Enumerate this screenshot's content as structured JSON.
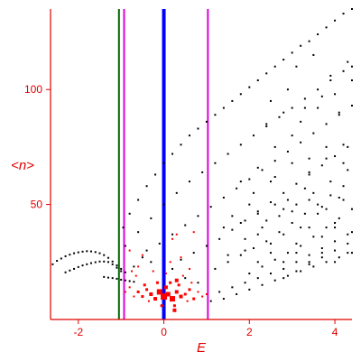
{
  "chart_data": {
    "type": "scatter",
    "xlabel": "E",
    "ylabel": "<n>",
    "xlim": [
      -2.65,
      4.4
    ],
    "ylim": [
      0,
      135
    ],
    "xticks": [
      {
        "value": -2,
        "label": "-2"
      },
      {
        "value": 0,
        "label": "0"
      },
      {
        "value": 2,
        "label": "2"
      },
      {
        "value": 4,
        "label": "4"
      }
    ],
    "yticks": [
      {
        "value": 50,
        "label": "50"
      },
      {
        "value": 100,
        "label": "100"
      }
    ],
    "vertical_lines": [
      {
        "x": -1.05,
        "color": "#006400"
      },
      {
        "x": -0.93,
        "color": "#e000e0"
      },
      {
        "x": 0.0,
        "color": "#0000ff"
      },
      {
        "x": 1.03,
        "color": "#e000e0"
      }
    ],
    "series": [
      {
        "color": "#000000",
        "marker": "dot",
        "points": [
          [
            -2.6,
            24
          ],
          [
            -2.5,
            25.5
          ],
          [
            -2.4,
            26.5
          ],
          [
            -2.3,
            27.5
          ],
          [
            -2.2,
            28.2
          ],
          [
            -2.1,
            28.8
          ],
          [
            -2.0,
            29.2
          ],
          [
            -1.9,
            29.5
          ],
          [
            -1.8,
            29.7
          ],
          [
            -1.7,
            29.6
          ],
          [
            -1.6,
            29.3
          ],
          [
            -1.5,
            28.8
          ],
          [
            -1.4,
            28.0
          ],
          [
            -1.3,
            26.8
          ],
          [
            -1.2,
            25.2
          ],
          [
            -1.1,
            23.5
          ],
          [
            -1.0,
            22.0
          ],
          [
            -0.9,
            20.5
          ],
          [
            -2.3,
            20.5
          ],
          [
            -2.2,
            21.3
          ],
          [
            -2.1,
            22.0
          ],
          [
            -2.0,
            22.8
          ],
          [
            -1.9,
            23.5
          ],
          [
            -1.8,
            24.0
          ],
          [
            -1.7,
            24.5
          ],
          [
            -1.6,
            24.9
          ],
          [
            -1.5,
            25.2
          ],
          [
            -1.4,
            25.2
          ],
          [
            -1.3,
            25.0
          ],
          [
            -1.2,
            24.0
          ],
          [
            -1.1,
            22.5
          ],
          [
            -1.0,
            21.0
          ],
          [
            -1.4,
            18.5
          ],
          [
            -1.3,
            18.2
          ],
          [
            -1.2,
            18.0
          ],
          [
            -1.1,
            17.7
          ],
          [
            -1.0,
            17.3
          ],
          [
            -0.9,
            17.0
          ],
          [
            -0.8,
            16.7
          ],
          [
            -0.7,
            16.4
          ],
          [
            -0.95,
            40
          ],
          [
            -0.8,
            46
          ],
          [
            -0.6,
            52
          ],
          [
            -0.4,
            58
          ],
          [
            -0.2,
            63
          ],
          [
            0.0,
            68
          ],
          [
            0.2,
            72
          ],
          [
            0.4,
            76
          ],
          [
            0.6,
            80
          ],
          [
            0.8,
            83
          ],
          [
            1.0,
            86
          ],
          [
            1.2,
            89
          ],
          [
            1.4,
            92
          ],
          [
            1.6,
            95
          ],
          [
            1.8,
            98
          ],
          [
            2.0,
            101
          ],
          [
            2.2,
            104
          ],
          [
            2.4,
            107
          ],
          [
            2.6,
            110
          ],
          [
            2.8,
            113
          ],
          [
            3.0,
            116
          ],
          [
            3.2,
            119
          ],
          [
            3.4,
            121
          ],
          [
            3.6,
            124
          ],
          [
            3.8,
            127
          ],
          [
            4.0,
            130
          ],
          [
            4.2,
            133
          ],
          [
            4.4,
            135
          ],
          [
            -0.9,
            32
          ],
          [
            -0.6,
            38
          ],
          [
            -0.3,
            44
          ],
          [
            0.0,
            50
          ],
          [
            0.3,
            55
          ],
          [
            0.6,
            60
          ],
          [
            0.9,
            64
          ],
          [
            1.2,
            68
          ],
          [
            1.5,
            72
          ],
          [
            1.8,
            76
          ],
          [
            2.1,
            80
          ],
          [
            2.4,
            84
          ],
          [
            2.7,
            88
          ],
          [
            3.0,
            92
          ],
          [
            3.3,
            96
          ],
          [
            3.6,
            100
          ],
          [
            3.9,
            104
          ],
          [
            4.2,
            108
          ],
          [
            4.4,
            110
          ],
          [
            -0.4,
            30
          ],
          [
            -0.1,
            33
          ],
          [
            0.2,
            37
          ],
          [
            0.5,
            41
          ],
          [
            0.8,
            45
          ],
          [
            1.1,
            49
          ],
          [
            1.4,
            53
          ],
          [
            1.7,
            57
          ],
          [
            2.0,
            61
          ],
          [
            2.3,
            65
          ],
          [
            2.6,
            69
          ],
          [
            2.9,
            73
          ],
          [
            3.2,
            77
          ],
          [
            3.5,
            81
          ],
          [
            3.8,
            85
          ],
          [
            4.1,
            89
          ],
          [
            4.4,
            93
          ],
          [
            0.4,
            26
          ],
          [
            0.7,
            29
          ],
          [
            1.0,
            32
          ],
          [
            1.3,
            35
          ],
          [
            1.6,
            39
          ],
          [
            1.9,
            43
          ],
          [
            2.2,
            47
          ],
          [
            2.5,
            51
          ],
          [
            2.8,
            55
          ],
          [
            3.1,
            59
          ],
          [
            3.4,
            63
          ],
          [
            3.7,
            67
          ],
          [
            4.0,
            71
          ],
          [
            4.3,
            75
          ],
          [
            1.2,
            22
          ],
          [
            1.5,
            25
          ],
          [
            1.8,
            28
          ],
          [
            2.1,
            31
          ],
          [
            2.4,
            34
          ],
          [
            2.7,
            38
          ],
          [
            3.0,
            42
          ],
          [
            3.3,
            46
          ],
          [
            3.6,
            50
          ],
          [
            3.9,
            54
          ],
          [
            4.2,
            58
          ],
          [
            2.0,
            20
          ],
          [
            2.3,
            23
          ],
          [
            2.6,
            26
          ],
          [
            2.9,
            29
          ],
          [
            3.2,
            32
          ],
          [
            3.5,
            36
          ],
          [
            3.8,
            40
          ],
          [
            4.1,
            44
          ],
          [
            4.4,
            48
          ],
          [
            2.8,
            18
          ],
          [
            3.1,
            21
          ],
          [
            3.4,
            24
          ],
          [
            3.7,
            27
          ],
          [
            4.0,
            30
          ],
          [
            4.3,
            33
          ],
          [
            1.3,
            12
          ],
          [
            1.6,
            14
          ],
          [
            1.9,
            16
          ],
          [
            2.2,
            18
          ],
          [
            2.5,
            20
          ],
          [
            2.8,
            22
          ],
          [
            3.1,
            25
          ],
          [
            3.4,
            28
          ],
          [
            3.7,
            31
          ],
          [
            4.0,
            34
          ],
          [
            4.3,
            37
          ],
          [
            1.1,
            8
          ],
          [
            1.4,
            9
          ],
          [
            1.7,
            11
          ],
          [
            2.0,
            13
          ],
          [
            2.3,
            15
          ],
          [
            2.6,
            17
          ],
          [
            2.9,
            19
          ],
          [
            3.2,
            21
          ],
          [
            3.5,
            23
          ],
          [
            3.8,
            25
          ],
          [
            4.1,
            27
          ],
          [
            4.4,
            29
          ],
          [
            1.5,
            28
          ],
          [
            1.9,
            35
          ],
          [
            2.3,
            40
          ],
          [
            2.7,
            45
          ],
          [
            3.1,
            50
          ],
          [
            3.5,
            55
          ],
          [
            3.9,
            60
          ],
          [
            4.3,
            65
          ],
          [
            1.6,
            45
          ],
          [
            2.0,
            50
          ],
          [
            2.4,
            43
          ],
          [
            2.8,
            48
          ],
          [
            3.2,
            40
          ],
          [
            3.6,
            46
          ],
          [
            4.0,
            42
          ],
          [
            4.4,
            38
          ],
          [
            2.1,
            55
          ],
          [
            2.5,
            60
          ],
          [
            2.9,
            52
          ],
          [
            3.3,
            57
          ],
          [
            3.7,
            49
          ],
          [
            4.1,
            53
          ],
          [
            2.6,
            75
          ],
          [
            3.0,
            80
          ],
          [
            3.4,
            70
          ],
          [
            3.8,
            75
          ],
          [
            4.2,
            68
          ],
          [
            2.5,
            95
          ],
          [
            2.9,
            100
          ],
          [
            3.3,
            92
          ],
          [
            3.7,
            97
          ],
          [
            4.1,
            90
          ],
          [
            3.1,
            110
          ],
          [
            3.5,
            115
          ],
          [
            3.9,
            106
          ],
          [
            4.3,
            112
          ],
          [
            1.9,
            30
          ],
          [
            2.2,
            37
          ],
          [
            2.5,
            33
          ],
          [
            2.8,
            37
          ],
          [
            3.1,
            33
          ],
          [
            3.4,
            40
          ],
          [
            3.7,
            36
          ],
          [
            4.0,
            40
          ],
          [
            1.4,
            40
          ],
          [
            1.8,
            42
          ],
          [
            2.2,
            46
          ],
          [
            2.6,
            50
          ],
          [
            3.0,
            47
          ],
          [
            3.4,
            52
          ],
          [
            3.8,
            48
          ],
          [
            4.2,
            52
          ],
          [
            2.2,
            25
          ],
          [
            2.5,
            29
          ],
          [
            2.8,
            25
          ],
          [
            3.1,
            29
          ],
          [
            3.4,
            25
          ],
          [
            3.7,
            29
          ],
          [
            4.0,
            25
          ],
          [
            4.3,
            29
          ],
          [
            -0.7,
            23
          ],
          [
            -0.5,
            27
          ],
          [
            -0.3,
            25
          ],
          [
            0.2,
            22
          ],
          [
            0.5,
            18
          ],
          [
            0.8,
            16
          ],
          [
            1.8,
            60
          ],
          [
            2.2,
            66
          ],
          [
            2.6,
            62
          ],
          [
            3.0,
            68
          ],
          [
            3.4,
            64
          ],
          [
            3.8,
            70
          ],
          [
            4.2,
            76
          ],
          [
            2.4,
            85
          ],
          [
            2.8,
            90
          ],
          [
            3.2,
            86
          ],
          [
            3.6,
            92
          ],
          [
            4.0,
            98
          ],
          [
            4.4,
            104
          ]
        ]
      },
      {
        "color": "#ff0000",
        "marker": "square",
        "points": [
          [
            -0.6,
            12,
            3
          ],
          [
            -0.5,
            10,
            3
          ],
          [
            -0.4,
            13,
            3
          ],
          [
            -0.3,
            11,
            4
          ],
          [
            -0.2,
            9,
            4
          ],
          [
            -0.1,
            12,
            6
          ],
          [
            0.0,
            10,
            7
          ],
          [
            0.1,
            11,
            5
          ],
          [
            0.2,
            9,
            6
          ],
          [
            0.3,
            12,
            4
          ],
          [
            0.4,
            10,
            4
          ],
          [
            0.5,
            11,
            3
          ],
          [
            0.6,
            13,
            3
          ],
          [
            0.7,
            9,
            3
          ],
          [
            0.8,
            12,
            2
          ],
          [
            -0.45,
            15,
            3
          ],
          [
            -0.35,
            8,
            2
          ],
          [
            -0.15,
            16,
            3
          ],
          [
            0.05,
            14,
            4
          ],
          [
            0.15,
            16,
            3
          ],
          [
            0.35,
            15,
            3
          ],
          [
            0.55,
            8,
            2
          ],
          [
            0.65,
            16,
            2
          ],
          [
            0.25,
            6,
            3
          ],
          [
            -0.05,
            6,
            3
          ],
          [
            -0.7,
            10,
            2
          ],
          [
            -0.8,
            14,
            2
          ],
          [
            -0.9,
            12,
            2
          ],
          [
            0.9,
            10,
            2
          ],
          [
            1.0,
            11,
            2
          ],
          [
            0.25,
            4,
            4
          ],
          [
            0.3,
            17,
            4
          ],
          [
            0.45,
            19,
            2
          ],
          [
            -0.25,
            21,
            2
          ],
          [
            -0.6,
            23,
            2
          ],
          [
            0.2,
            35,
            2
          ],
          [
            0.3,
            37,
            2
          ],
          [
            0.7,
            38,
            2
          ],
          [
            -0.8,
            30,
            2
          ],
          [
            -0.5,
            28,
            2
          ],
          [
            -0.65,
            19,
            2
          ],
          [
            -0.75,
            21,
            2
          ],
          [
            0.05,
            20,
            2
          ],
          [
            0.15,
            25,
            2
          ],
          [
            0.6,
            22,
            2
          ],
          [
            0.4,
            27,
            2
          ]
        ]
      }
    ]
  }
}
